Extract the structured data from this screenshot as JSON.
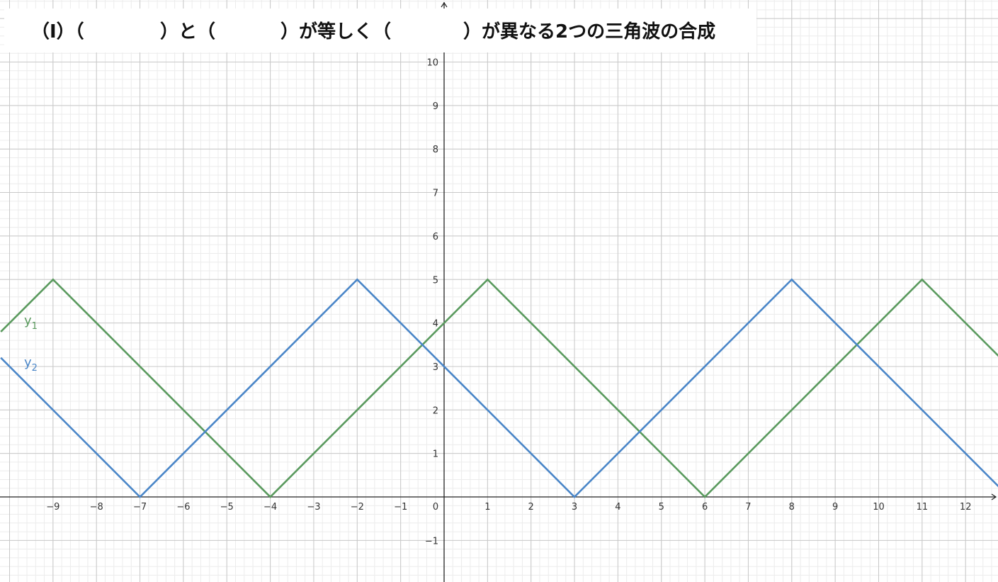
{
  "title_parts": {
    "part1": "（I）（",
    "part2": "）と（",
    "part3": "）が等しく（",
    "part4": "）が異なる2つの三角波の合成"
  },
  "colors": {
    "y1": "#5a9a5e",
    "y2": "#4a86c8",
    "axis": "#222222",
    "major_grid": "#c8c8c8",
    "minor_grid": "#ececec"
  },
  "labels": {
    "y1_base": "y",
    "y1_sub": "1",
    "y2_base": "y",
    "y2_sub": "2"
  },
  "chart_data": {
    "type": "line",
    "xlim": [
      -10.2,
      12.8
    ],
    "ylim": [
      -1.95,
      11.4
    ],
    "grid": true,
    "minor_grid_step": 0.2,
    "x_ticks": [
      -9,
      -8,
      -7,
      -6,
      -5,
      -4,
      -3,
      -2,
      -1,
      0,
      1,
      2,
      3,
      4,
      5,
      6,
      7,
      8,
      9,
      10,
      11,
      12
    ],
    "x_tick_labels": [
      "−9",
      "−8",
      "−7",
      "−6",
      "−5",
      "−4",
      "−3",
      "−2",
      "−1",
      "0",
      "1",
      "2",
      "3",
      "4",
      "5",
      "6",
      "7",
      "8",
      "9",
      "10",
      "11",
      "12"
    ],
    "y_ticks": [
      -1,
      1,
      2,
      3,
      4,
      5,
      6,
      7,
      8,
      9,
      10
    ],
    "y_tick_labels": [
      "−1",
      "1",
      "2",
      "3",
      "4",
      "5",
      "6",
      "7",
      "8",
      "9",
      "10"
    ],
    "series": [
      {
        "name": "y1",
        "x": [
          -10.2,
          -9,
          -4,
          1,
          6,
          11,
          12.8
        ],
        "y": [
          3.8,
          5,
          0,
          5,
          0,
          5,
          3.2
        ]
      },
      {
        "name": "y2",
        "x": [
          -10.2,
          -7,
          -2,
          3,
          8,
          13
        ],
        "y": [
          3.2,
          0,
          5,
          0,
          5,
          0
        ]
      }
    ]
  }
}
